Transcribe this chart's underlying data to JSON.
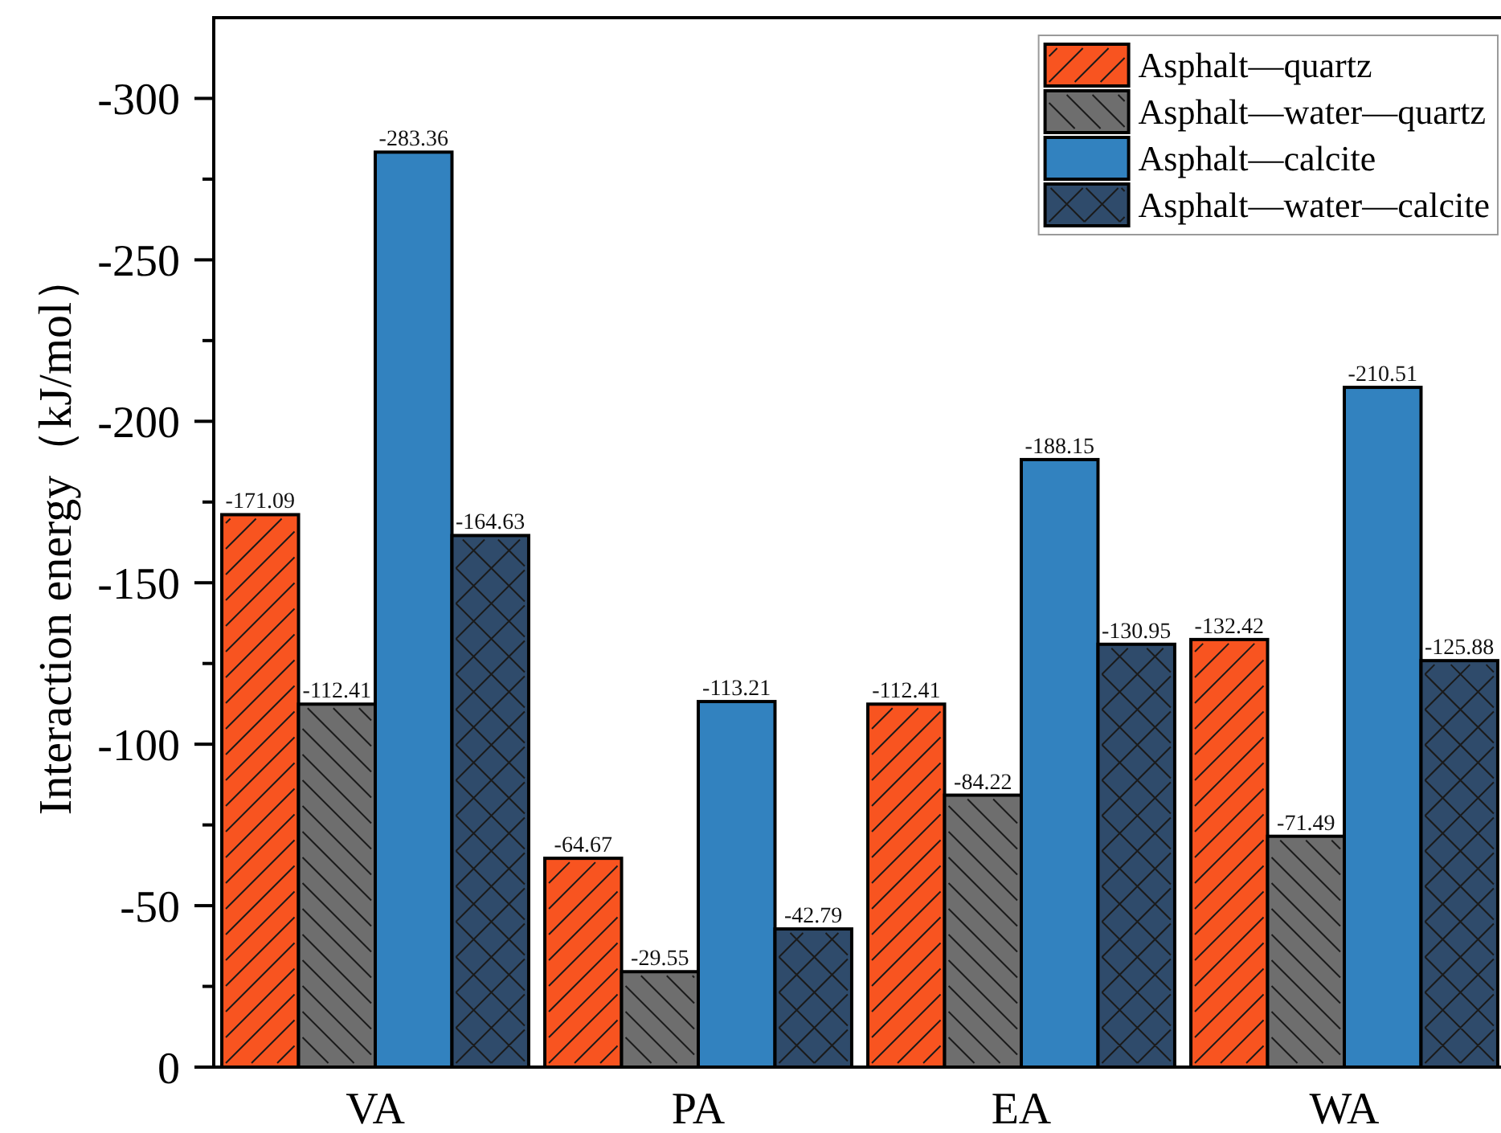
{
  "chart_data": {
    "type": "bar",
    "ylabel": "Interaction energy（kJ/mol）",
    "categories": [
      "VA",
      "PA",
      "EA",
      "WA"
    ],
    "series": [
      {
        "name": "Asphalt—quartz",
        "color": "#f85420",
        "values": [
          -171.09,
          -64.67,
          -112.41,
          -132.42
        ]
      },
      {
        "name": "Asphalt—water—quartz",
        "color": "#6e6e6e",
        "values": [
          -112.41,
          -29.55,
          -84.22,
          -71.49
        ]
      },
      {
        "name": "Asphalt—calcite",
        "color": "#3282bf",
        "values": [
          -283.36,
          -113.21,
          -188.15,
          -210.51
        ]
      },
      {
        "name": "Asphalt—water—calcite",
        "color": "#2f4b6b",
        "values": [
          -164.63,
          -42.79,
          -130.95,
          -125.88
        ]
      }
    ],
    "ylim": [
      0,
      -325
    ],
    "yticks": [
      0,
      {
        "value": -25,
        "label": null
      },
      -50,
      {
        "value": -75,
        "label": null
      },
      -100,
      {
        "value": -125,
        "label": null
      },
      -150,
      {
        "value": -175,
        "label": null
      },
      -200,
      {
        "value": -225,
        "label": null
      },
      -250,
      {
        "value": -275,
        "label": null
      },
      -300
    ],
    "data_labels": true,
    "legend": "top right"
  }
}
